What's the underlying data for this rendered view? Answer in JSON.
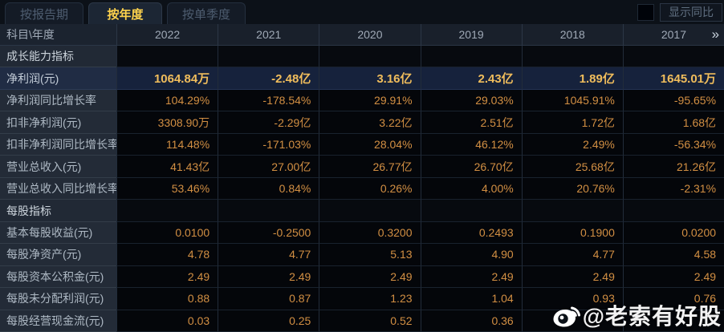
{
  "tabs": [
    {
      "label": "按报告期",
      "active": false
    },
    {
      "label": "按年度",
      "active": true
    },
    {
      "label": "按单季度",
      "active": false
    }
  ],
  "controls": {
    "show_yoy_label": "显示同比",
    "checkbox_checked": false
  },
  "table": {
    "corner_header": "科目\\年度",
    "year_columns": [
      "2022",
      "2021",
      "2020",
      "2019",
      "2018",
      "2017"
    ],
    "next_page_icon": "»",
    "rows": [
      {
        "type": "section",
        "highlight": false,
        "label": "成长能力指标",
        "values": [
          "",
          "",
          "",
          "",
          "",
          ""
        ]
      },
      {
        "type": "data",
        "highlight": true,
        "label": "净利润(元)",
        "values": [
          "1064.84万",
          "-2.48亿",
          "3.16亿",
          "2.43亿",
          "1.89亿",
          "1645.01万"
        ]
      },
      {
        "type": "data",
        "highlight": false,
        "label": "净利润同比增长率",
        "values": [
          "104.29%",
          "-178.54%",
          "29.91%",
          "29.03%",
          "1045.91%",
          "-95.65%"
        ]
      },
      {
        "type": "data",
        "highlight": false,
        "label": "扣非净利润(元)",
        "values": [
          "3308.90万",
          "-2.29亿",
          "3.22亿",
          "2.51亿",
          "1.72亿",
          "1.68亿"
        ]
      },
      {
        "type": "data",
        "highlight": false,
        "label": "扣非净利润同比增长率",
        "values": [
          "114.48%",
          "-171.03%",
          "28.04%",
          "46.12%",
          "2.49%",
          "-56.34%"
        ]
      },
      {
        "type": "data",
        "highlight": false,
        "label": "营业总收入(元)",
        "values": [
          "41.43亿",
          "27.00亿",
          "26.77亿",
          "26.70亿",
          "25.68亿",
          "21.26亿"
        ]
      },
      {
        "type": "data",
        "highlight": false,
        "label": "营业总收入同比增长率",
        "values": [
          "53.46%",
          "0.84%",
          "0.26%",
          "4.00%",
          "20.76%",
          "-2.31%"
        ]
      },
      {
        "type": "section",
        "highlight": false,
        "label": "每股指标",
        "values": [
          "",
          "",
          "",
          "",
          "",
          ""
        ]
      },
      {
        "type": "data",
        "highlight": false,
        "label": "基本每股收益(元)",
        "values": [
          "0.0100",
          "-0.2500",
          "0.3200",
          "0.2493",
          "0.1900",
          "0.0200"
        ]
      },
      {
        "type": "data",
        "highlight": false,
        "label": "每股净资产(元)",
        "values": [
          "4.78",
          "4.77",
          "5.13",
          "4.90",
          "4.77",
          "4.58"
        ]
      },
      {
        "type": "data",
        "highlight": false,
        "label": "每股资本公积金(元)",
        "values": [
          "2.49",
          "2.49",
          "2.49",
          "2.49",
          "2.49",
          "2.49"
        ]
      },
      {
        "type": "data",
        "highlight": false,
        "label": "每股未分配利润(元)",
        "values": [
          "0.88",
          "0.87",
          "1.23",
          "1.04",
          "0.93",
          "0.76"
        ]
      },
      {
        "type": "data",
        "highlight": false,
        "label": "每股经营现金流(元)",
        "values": [
          "0.03",
          "0.25",
          "0.52",
          "0.36",
          "",
          ""
        ]
      }
    ]
  },
  "watermark": {
    "text": "@老索有好股",
    "icon": "weibo-icon"
  },
  "colors": {
    "background": "#0c1118",
    "active_tab_text": "#ffd34d",
    "value_text": "#d28f43",
    "highlight_value_text": "#f0bd5c",
    "highlight_row_bg": "#16223c",
    "label_column_bg": "#232b37",
    "header_row_bg": "#19202b"
  }
}
